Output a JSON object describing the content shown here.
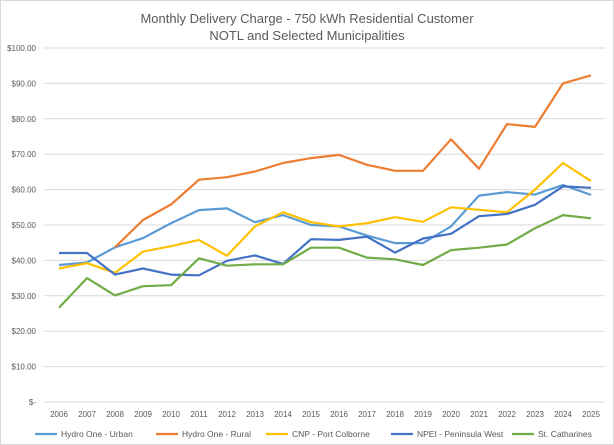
{
  "chart_data": {
    "type": "line",
    "title": "Monthly Delivery Charge - 750 kWh Residential Customer",
    "subtitle": "NOTL and Selected Municipalities",
    "xlabel": "",
    "ylabel": "",
    "ylim": [
      0,
      100
    ],
    "y_ticks": [
      0,
      10,
      20,
      30,
      40,
      50,
      60,
      70,
      80,
      90,
      100
    ],
    "y_tick_labels": [
      "$-",
      "$10.00",
      "$20.00",
      "$30.00",
      "$40.00",
      "$50.00",
      "$60.00",
      "$70.00",
      "$80.00",
      "$90.00",
      "$100.00"
    ],
    "grid": true,
    "legend_position": "bottom",
    "categories": [
      "2006",
      "2007",
      "2008",
      "2009",
      "2010",
      "2011",
      "2012",
      "2013",
      "2014",
      "2015",
      "2016",
      "2017",
      "2018",
      "2019",
      "2020",
      "2021",
      "2022",
      "2023",
      "2024",
      "2025"
    ],
    "series": [
      {
        "name": "Hydro One - Urban",
        "color": "#5B9BD5",
        "values": [
          38.7,
          39.4,
          43.7,
          46.3,
          50.5,
          54.2,
          54.7,
          50.8,
          52.8,
          50.0,
          49.6,
          47.0,
          44.9,
          44.9,
          49.6,
          58.3,
          59.3,
          58.6,
          61.3,
          58.5
        ]
      },
      {
        "name": "Hydro One - Rural",
        "color": "#ED7D31",
        "values": [
          null,
          null,
          43.7,
          51.4,
          55.8,
          62.8,
          63.5,
          65.1,
          67.5,
          68.9,
          69.8,
          67.0,
          65.3,
          65.3,
          74.2,
          65.9,
          78.5,
          77.7,
          90.0,
          92.3
        ]
      },
      {
        "name": "CNP - Port Colborne",
        "color": "#FFC000",
        "values": [
          37.7,
          39.2,
          36.5,
          42.5,
          44.0,
          45.8,
          41.3,
          49.6,
          53.6,
          50.8,
          49.6,
          50.5,
          52.2,
          50.9,
          55.0,
          54.3,
          53.6,
          60.0,
          67.5,
          62.4
        ]
      },
      {
        "name": "NPEI - Peninsula West",
        "color": "#4472C4",
        "values": [
          42.1,
          42.1,
          36.0,
          37.7,
          36.0,
          35.8,
          39.9,
          41.4,
          39.0,
          46.0,
          45.8,
          46.7,
          42.2,
          46.2,
          47.5,
          52.5,
          53.1,
          55.7,
          60.9,
          60.5
        ]
      },
      {
        "name": "St. Catharines",
        "color": "#70AD47",
        "values": [
          26.6,
          35.0,
          30.1,
          32.7,
          33.0,
          40.6,
          38.5,
          38.9,
          38.9,
          43.6,
          43.6,
          40.8,
          40.3,
          38.7,
          42.9,
          43.6,
          44.5,
          49.1,
          52.8,
          51.9
        ]
      }
    ]
  }
}
